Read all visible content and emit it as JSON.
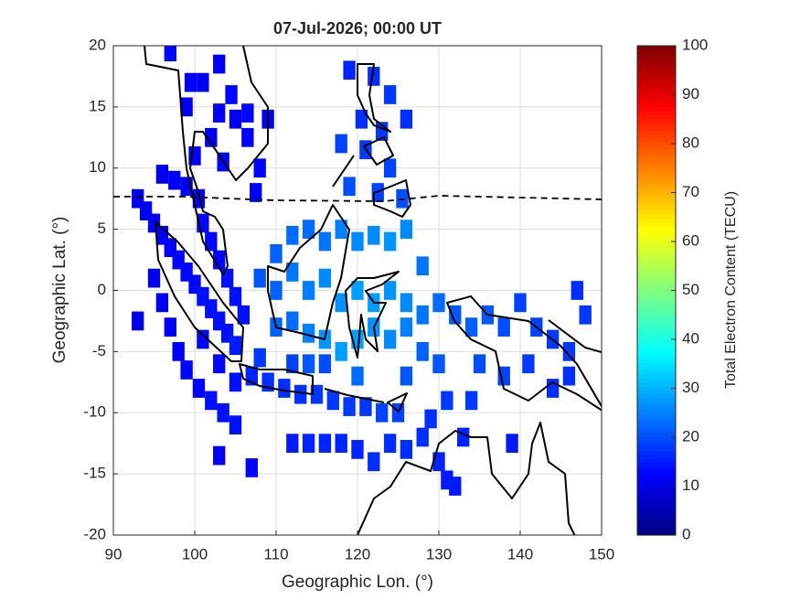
{
  "chart_data": {
    "type": "map",
    "title": "07-Jul-2026; 00:00 UT",
    "xlabel": "Geographic Lon. (°)",
    "ylabel": "Geographic Lat. (°)",
    "colorbar_label": "Total Electron Content (TECU)",
    "colormap": "jet",
    "grid": true,
    "xlim": [
      90,
      150
    ],
    "xticks": [
      90,
      100,
      110,
      120,
      130,
      140,
      150
    ],
    "ylim": [
      -20,
      20
    ],
    "yticks": [
      -20,
      -15,
      -10,
      -5,
      0,
      5,
      10,
      15,
      20
    ],
    "clim": [
      0,
      100
    ],
    "cticks": [
      0,
      10,
      20,
      30,
      40,
      50,
      60,
      70,
      80,
      90,
      100
    ],
    "x": [
      97,
      103,
      101,
      99.5,
      104.5,
      106.5,
      103,
      99,
      105,
      106.5,
      102,
      100,
      103.5,
      109,
      108,
      107.5,
      119,
      122,
      124,
      120.5,
      123,
      126,
      118,
      121,
      124,
      119,
      122.5,
      125.5,
      93,
      94,
      95,
      96,
      97,
      98,
      99,
      100,
      101,
      102,
      103,
      104,
      105,
      96,
      97.5,
      99,
      100.5,
      101,
      102,
      103,
      104,
      105,
      106,
      95,
      96,
      97,
      98,
      99,
      100.5,
      102,
      103.5,
      105,
      93,
      103,
      107,
      101,
      103,
      105,
      107,
      109,
      111,
      113,
      115,
      117,
      119,
      121,
      123,
      125,
      108,
      112,
      116,
      110,
      112,
      114,
      116,
      118,
      120,
      122,
      124,
      126,
      108,
      110,
      112,
      114,
      116,
      118,
      120,
      122,
      124,
      126,
      110,
      112,
      114,
      116,
      118,
      120,
      122,
      124,
      126,
      128,
      130,
      128,
      128,
      126,
      130,
      120,
      114,
      132,
      134,
      136,
      138,
      140,
      142,
      144,
      146,
      148,
      147,
      135,
      138,
      141,
      144,
      146,
      134,
      131,
      139,
      112,
      114,
      116,
      118,
      120,
      122,
      124,
      126,
      128,
      130,
      131,
      132,
      133,
      129
    ],
    "y": [
      19.5,
      18.5,
      17,
      17,
      16,
      14.5,
      14.5,
      15,
      14,
      12.5,
      12.5,
      11,
      10.5,
      14,
      10,
      8,
      18,
      17.5,
      16,
      14,
      13,
      14,
      12,
      11.5,
      10,
      8.5,
      8,
      7.5,
      7.5,
      6.5,
      5.5,
      4.5,
      3.5,
      2.5,
      1.5,
      0.5,
      -0.5,
      -1.5,
      -2.5,
      -3.5,
      -4.5,
      9.5,
      9,
      8.5,
      7.5,
      5.5,
      4,
      2.5,
      1,
      -0.5,
      -2,
      1,
      -1,
      -3,
      -5,
      -6.5,
      -8,
      -9,
      -10,
      -11,
      -2.5,
      -13.5,
      -14.5,
      -4,
      -6,
      -7.5,
      -7,
      -7.5,
      -8,
      -8.5,
      -8.5,
      -9,
      -9.5,
      -9.5,
      -10,
      -10,
      -5.5,
      -6,
      -6,
      3,
      4.5,
      5,
      4,
      5,
      4,
      4.5,
      4,
      5,
      1,
      0,
      1.5,
      0,
      1,
      -1,
      0,
      -1,
      0,
      -1,
      -3,
      -2.5,
      -3.5,
      -4,
      -5,
      -4,
      -3,
      -4,
      -3,
      -2,
      -1,
      2,
      -5,
      -7,
      -6,
      -7,
      -6,
      -2,
      -3,
      -2,
      -3,
      -1,
      -3,
      -4,
      -5,
      -2,
      0,
      -6,
      -7,
      -6,
      -8,
      -7,
      -9,
      -9,
      -12.5,
      -12.5,
      -12.5,
      -12.5,
      -12.5,
      -13,
      -14,
      -12.5,
      -13,
      -12,
      -14,
      -15.5,
      -16,
      -12,
      -10.5
    ],
    "values": [
      13,
      12,
      11,
      12,
      13,
      13,
      12,
      11,
      12,
      12,
      11,
      12,
      13,
      12,
      13,
      12,
      16,
      17,
      18,
      17,
      18,
      17,
      19,
      18,
      19,
      20,
      19,
      20,
      11,
      11,
      12,
      12,
      13,
      13,
      13,
      13,
      14,
      14,
      14,
      14,
      15,
      11,
      12,
      12,
      12,
      13,
      13,
      13,
      14,
      14,
      14,
      11,
      12,
      12,
      12,
      13,
      13,
      14,
      14,
      14,
      10,
      12,
      13,
      13,
      13,
      14,
      16,
      17,
      17,
      17,
      18,
      18,
      18,
      18,
      19,
      19,
      18,
      19,
      20,
      22,
      23,
      23,
      24,
      25,
      26,
      26,
      27,
      26,
      21,
      22,
      24,
      25,
      26,
      27,
      28,
      28,
      27,
      26,
      22,
      23,
      25,
      27,
      28,
      28,
      27,
      26,
      25,
      24,
      23,
      24,
      22,
      21,
      21,
      23,
      21,
      21,
      22,
      21,
      20,
      19,
      19,
      18,
      18,
      18,
      17,
      20,
      19,
      18,
      17,
      17,
      18,
      18,
      15,
      15,
      16,
      16,
      16,
      16,
      17,
      17,
      17,
      17,
      16,
      15,
      15,
      16,
      17
    ]
  }
}
